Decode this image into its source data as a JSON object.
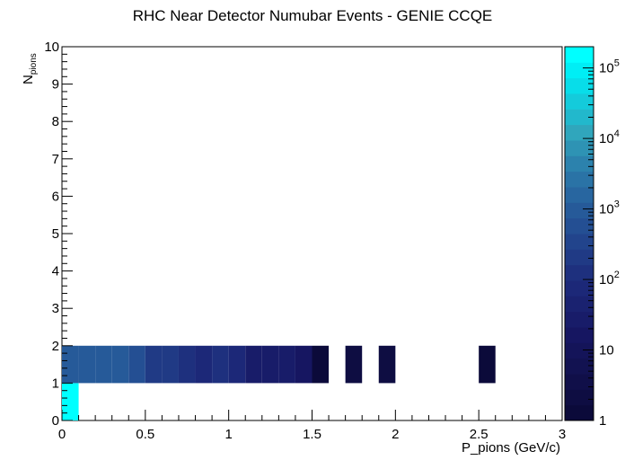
{
  "chart_data": {
    "type": "heatmap",
    "title": "RHC Near Detector Numubar Events - GENIE CCQE",
    "xlabel": "P_pions (GeV/c)",
    "ylabel_main": "N",
    "ylabel_sub": "pions",
    "xlim": [
      0,
      3
    ],
    "ylim": [
      0,
      10
    ],
    "x_ticks": [
      "0",
      "0.5",
      "1",
      "1.5",
      "2",
      "2.5",
      "3"
    ],
    "y_ticks": [
      "0",
      "1",
      "2",
      "3",
      "4",
      "5",
      "6",
      "7",
      "8",
      "9",
      "10"
    ],
    "z_scale": "log",
    "zlim": [
      1,
      200000
    ],
    "z_tick_labels": [
      {
        "value": 1,
        "base": "1",
        "exp": ""
      },
      {
        "value": 10,
        "base": "10",
        "exp": ""
      },
      {
        "value": 100,
        "base": "10",
        "exp": "2"
      },
      {
        "value": 1000,
        "base": "10",
        "exp": "3"
      },
      {
        "value": 10000,
        "base": "10",
        "exp": "4"
      },
      {
        "value": 100000,
        "base": "10",
        "exp": "5"
      }
    ],
    "bin_width_x": 0.1,
    "bins": [
      {
        "x": 0.0,
        "y": 0,
        "z": 200000
      },
      {
        "x": 0.0,
        "y": 1,
        "z": 1200
      },
      {
        "x": 0.1,
        "y": 1,
        "z": 1200
      },
      {
        "x": 0.2,
        "y": 1,
        "z": 1200
      },
      {
        "x": 0.3,
        "y": 1,
        "z": 1200
      },
      {
        "x": 0.4,
        "y": 1,
        "z": 600
      },
      {
        "x": 0.5,
        "y": 1,
        "z": 250
      },
      {
        "x": 0.6,
        "y": 1,
        "z": 250
      },
      {
        "x": 0.7,
        "y": 1,
        "z": 120
      },
      {
        "x": 0.8,
        "y": 1,
        "z": 60
      },
      {
        "x": 0.9,
        "y": 1,
        "z": 120
      },
      {
        "x": 1.0,
        "y": 1,
        "z": 60
      },
      {
        "x": 1.1,
        "y": 1,
        "z": 30
      },
      {
        "x": 1.2,
        "y": 1,
        "z": 30
      },
      {
        "x": 1.3,
        "y": 1,
        "z": 30
      },
      {
        "x": 1.4,
        "y": 1,
        "z": 15
      },
      {
        "x": 1.5,
        "y": 1,
        "z": 1
      },
      {
        "x": 1.7,
        "y": 1,
        "z": 2
      },
      {
        "x": 1.9,
        "y": 1,
        "z": 2
      },
      {
        "x": 2.5,
        "y": 1,
        "z": 1
      }
    ],
    "palette": [
      "#0b0a3a",
      "#0e0d42",
      "#100f49",
      "#121251",
      "#141459",
      "#161661",
      "#181c69",
      "#1a2270",
      "#1c2878",
      "#1e307e",
      "#203a85",
      "#22448c",
      "#244f93",
      "#265a99",
      "#2866a0",
      "#2a73a6",
      "#2c82ad",
      "#2e93b4",
      "#30a6bc",
      "#22b8cc",
      "#14cbdb",
      "#08dde9",
      "#00eef5",
      "#00ffff"
    ]
  }
}
